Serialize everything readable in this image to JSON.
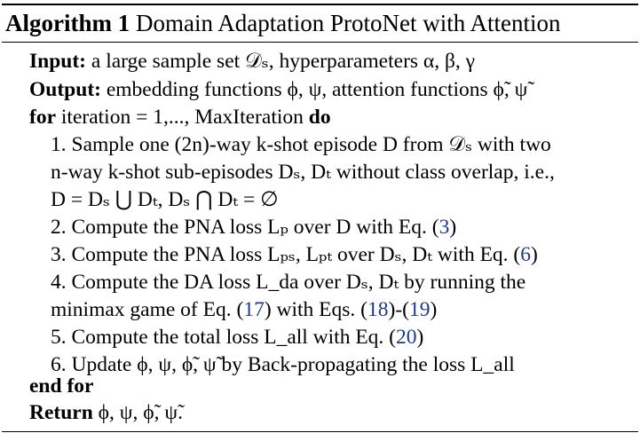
{
  "title": {
    "label": "Algorithm 1",
    "text": "Domain Adaptation ProtoNet with Attention"
  },
  "input": {
    "keyword": "Input:",
    "text": "a large sample set 𝒟ₛ, hyperparameters α, β, γ"
  },
  "output": {
    "keyword": "Output:",
    "text": "embedding functions ϕ, ψ, attention functions ϕ̃, ψ̃"
  },
  "loop": {
    "for_keyword": "for",
    "condition": "iteration = 1,..., MaxIteration",
    "do_keyword": "do",
    "end_keyword": "end for"
  },
  "steps": {
    "s1_line1": "1. Sample one (2n)-way k-shot episode D from 𝒟ₛ with two",
    "s1_line2": "n-way k-shot sub-episodes Dₛ, Dₜ without class overlap, i.e.,",
    "s1_line3": "D = Dₛ ⋃ Dₜ, Dₛ ⋂ Dₜ = ∅",
    "s2_pre": "2. Compute the PNA loss Lₚ over D with Eq. (",
    "s2_ref": "3",
    "s2_post": ")",
    "s3_pre": "3. Compute the PNA loss Lₚₛ, Lₚₜ over Dₛ, Dₜ with Eq. (",
    "s3_ref": "6",
    "s3_post": ")",
    "s4_line1": "4.  Compute the DA loss L_da over Dₛ, Dₜ by running the",
    "s4_pre": "minimax game of Eq. (",
    "s4_ref1": "17",
    "s4_mid": ") with Eqs. (",
    "s4_ref2": "18",
    "s4_mid2": ")-(",
    "s4_ref3": "19",
    "s4_post": ")",
    "s5_pre": "5. Compute the total loss L_all with Eq. (",
    "s5_ref": "20",
    "s5_post": ")",
    "s6": "6. Update ϕ, ψ, ϕ̃, ψ̃ by Back-propagating the loss L_all"
  },
  "return_line": {
    "keyword": "Return",
    "text": "ϕ, ψ, ϕ̃, ψ̃."
  }
}
